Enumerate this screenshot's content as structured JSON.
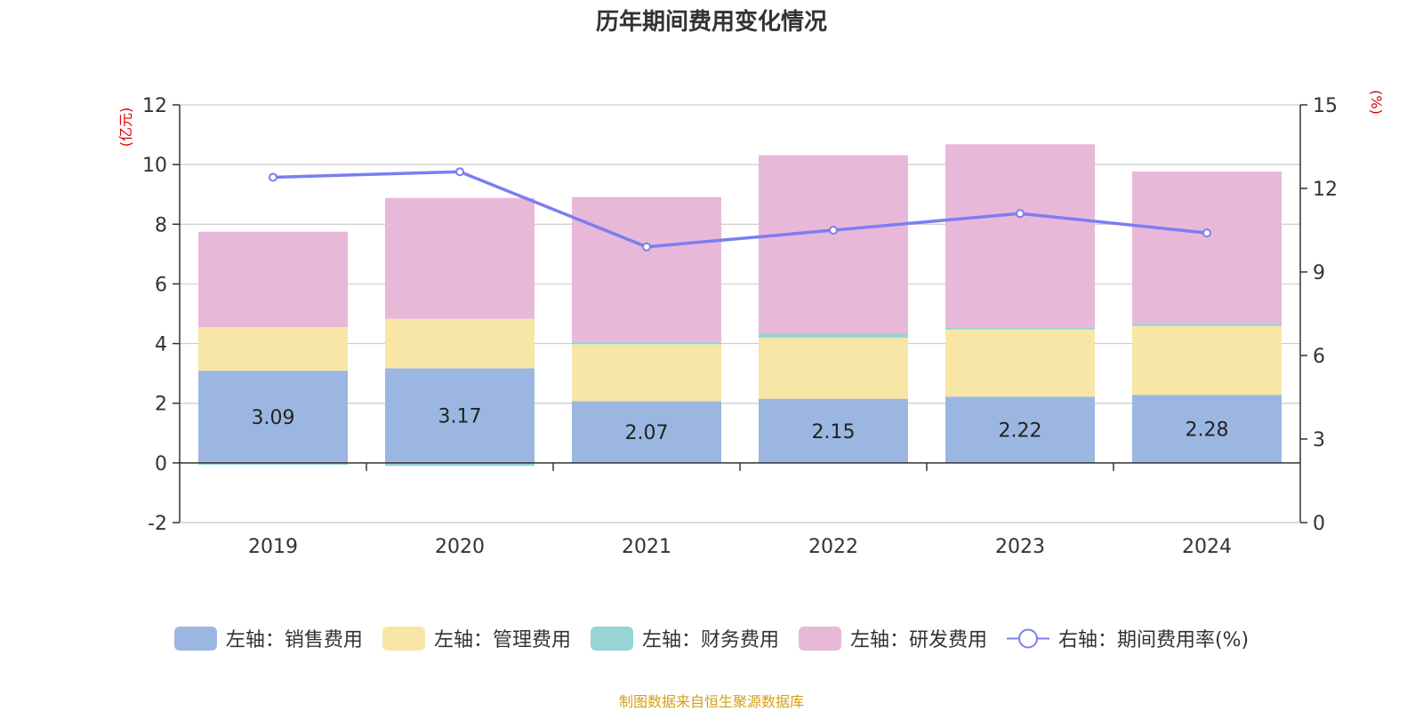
{
  "title": "历年期间费用变化情况",
  "source_note": "制图数据来自恒生聚源数据库",
  "chart_data": {
    "type": "bar",
    "stacked": true,
    "categories": [
      "2019",
      "2020",
      "2021",
      "2022",
      "2023",
      "2024"
    ],
    "left_axis": {
      "unit_label": "(亿元)",
      "ylim": [
        -2,
        12
      ],
      "ticks": [
        -2,
        0,
        2,
        4,
        6,
        8,
        10,
        12
      ]
    },
    "right_axis": {
      "unit_label": "(%)",
      "ylim": [
        0,
        15
      ],
      "ticks": [
        0,
        3,
        6,
        9,
        12,
        15
      ]
    },
    "series": [
      {
        "name": "左轴：销售费用",
        "axis": "left",
        "kind": "bar",
        "color": "#9bb7e1",
        "values": [
          3.09,
          3.17,
          2.07,
          2.15,
          2.22,
          2.28
        ],
        "data_labels": [
          "3.09",
          "3.17",
          "2.07",
          "2.15",
          "2.22",
          "2.28"
        ]
      },
      {
        "name": "左轴：管理费用",
        "axis": "left",
        "kind": "bar",
        "color": "#f7e6a6",
        "values": [
          1.46,
          1.66,
          1.91,
          2.05,
          2.25,
          2.31
        ]
      },
      {
        "name": "左轴：财务费用",
        "axis": "left",
        "kind": "bar",
        "color": "#96d4d6",
        "values": [
          -0.06,
          -0.1,
          0.07,
          0.13,
          0.06,
          0.07
        ]
      },
      {
        "name": "左轴：研发费用",
        "axis": "left",
        "kind": "bar",
        "color": "#e8b8d8",
        "values": [
          3.2,
          4.05,
          4.86,
          5.98,
          6.15,
          5.11
        ]
      },
      {
        "name": "右轴：期间费用率(%)",
        "axis": "right",
        "kind": "line",
        "color": "#7b7ef0",
        "values": [
          12.4,
          12.6,
          9.9,
          10.5,
          11.1,
          10.4
        ]
      }
    ],
    "grid": true,
    "legend_position": "bottom"
  }
}
